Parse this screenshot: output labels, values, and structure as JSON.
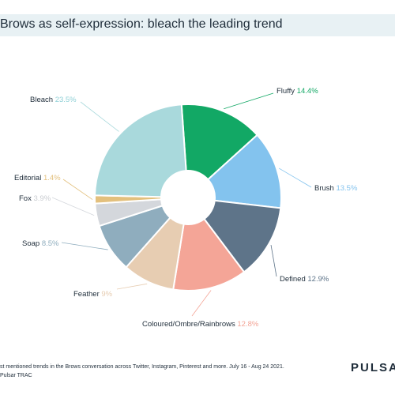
{
  "header": {
    "title": "Brows as self-expression: bleach the leading trend"
  },
  "footer": {
    "note_line1": "st mentioned trends in the Brows conversation across Twitter, Instagram, Pinterest and more. July 16 - Aug 24 2021.",
    "note_line2": "Pulsar TRAC",
    "brand": "PULSAR"
  },
  "chart_data": {
    "type": "pie",
    "title": "Brows as self-expression: bleach the leading trend",
    "donut": true,
    "categories": [
      "Fluffy",
      "Brush",
      "Defined",
      "Coloured/Ombre/Rainbrows",
      "Feather",
      "Soap",
      "Fox",
      "Editorial",
      "Bleach"
    ],
    "values": [
      14.4,
      13.5,
      12.9,
      12.8,
      9,
      8.5,
      3.9,
      1.4,
      23.5
    ],
    "value_labels": [
      "14.4%",
      "13.5%",
      "12.9%",
      "12.8%",
      "9%",
      "8.5%",
      "3.9%",
      "1.4%",
      "23.5%"
    ],
    "colors": [
      "#12a865",
      "#83c3ee",
      "#5e7489",
      "#f4a597",
      "#e7cdb2",
      "#8fadbe",
      "#d4d7dc",
      "#e3c07d",
      "#a9d9dc"
    ],
    "label_value_colors": [
      "#12a865",
      "#83c3ee",
      "#5e7489",
      "#f4a597",
      "#e7cdb2",
      "#8fadbe",
      "#c9ccd1",
      "#e3c07d",
      "#8fd0d6"
    ],
    "legend": "none"
  }
}
